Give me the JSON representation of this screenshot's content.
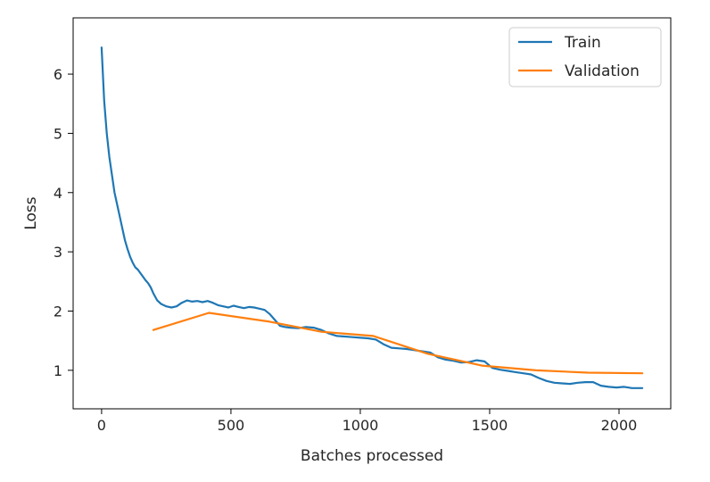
{
  "chart_data": {
    "type": "line",
    "title": "",
    "xlabel": "Batches processed",
    "ylabel": "Loss",
    "xlim": [
      -110,
      2200
    ],
    "ylim": [
      0.35,
      6.95
    ],
    "xticks": [
      0,
      500,
      1000,
      1500,
      2000
    ],
    "yticks": [
      1,
      2,
      3,
      4,
      5,
      6
    ],
    "grid": false,
    "legend": "top-right",
    "series": [
      {
        "name": "Train",
        "color": "#1f77b4",
        "x": [
          0,
          10,
          20,
          30,
          40,
          50,
          60,
          70,
          80,
          90,
          100,
          110,
          120,
          130,
          140,
          150,
          160,
          170,
          180,
          190,
          200,
          215,
          230,
          250,
          270,
          290,
          310,
          330,
          350,
          370,
          390,
          410,
          430,
          450,
          470,
          490,
          510,
          530,
          550,
          570,
          590,
          610,
          630,
          650,
          670,
          690,
          710,
          730,
          760,
          790,
          820,
          850,
          880,
          910,
          940,
          970,
          1000,
          1030,
          1060,
          1090,
          1120,
          1150,
          1180,
          1210,
          1240,
          1270,
          1300,
          1330,
          1360,
          1390,
          1420,
          1450,
          1480,
          1510,
          1540,
          1570,
          1600,
          1630,
          1660,
          1690,
          1720,
          1750,
          1780,
          1810,
          1840,
          1870,
          1900,
          1930,
          1960,
          1990,
          2020,
          2050,
          2080,
          2090
        ],
        "y": [
          6.45,
          5.55,
          5.0,
          4.6,
          4.3,
          4.0,
          3.8,
          3.6,
          3.4,
          3.2,
          3.05,
          2.92,
          2.82,
          2.74,
          2.7,
          2.64,
          2.58,
          2.52,
          2.47,
          2.4,
          2.3,
          2.18,
          2.12,
          2.08,
          2.06,
          2.08,
          2.14,
          2.18,
          2.16,
          2.17,
          2.15,
          2.17,
          2.14,
          2.1,
          2.08,
          2.06,
          2.09,
          2.07,
          2.05,
          2.07,
          2.06,
          2.04,
          2.02,
          1.95,
          1.85,
          1.75,
          1.73,
          1.72,
          1.71,
          1.73,
          1.72,
          1.68,
          1.62,
          1.58,
          1.57,
          1.56,
          1.55,
          1.54,
          1.52,
          1.44,
          1.38,
          1.37,
          1.36,
          1.34,
          1.32,
          1.3,
          1.22,
          1.18,
          1.16,
          1.13,
          1.14,
          1.17,
          1.15,
          1.04,
          1.01,
          0.99,
          0.97,
          0.95,
          0.93,
          0.87,
          0.82,
          0.79,
          0.78,
          0.77,
          0.79,
          0.8,
          0.8,
          0.74,
          0.72,
          0.71,
          0.72,
          0.7,
          0.7,
          0.7
        ]
      },
      {
        "name": "Validation",
        "color": "#ff7f0e",
        "x": [
          200,
          415,
          650,
          850,
          1050,
          1260,
          1470,
          1680,
          1880,
          2090
        ],
        "y": [
          1.68,
          1.97,
          1.82,
          1.65,
          1.58,
          1.28,
          1.08,
          1.0,
          0.96,
          0.95
        ]
      }
    ]
  }
}
